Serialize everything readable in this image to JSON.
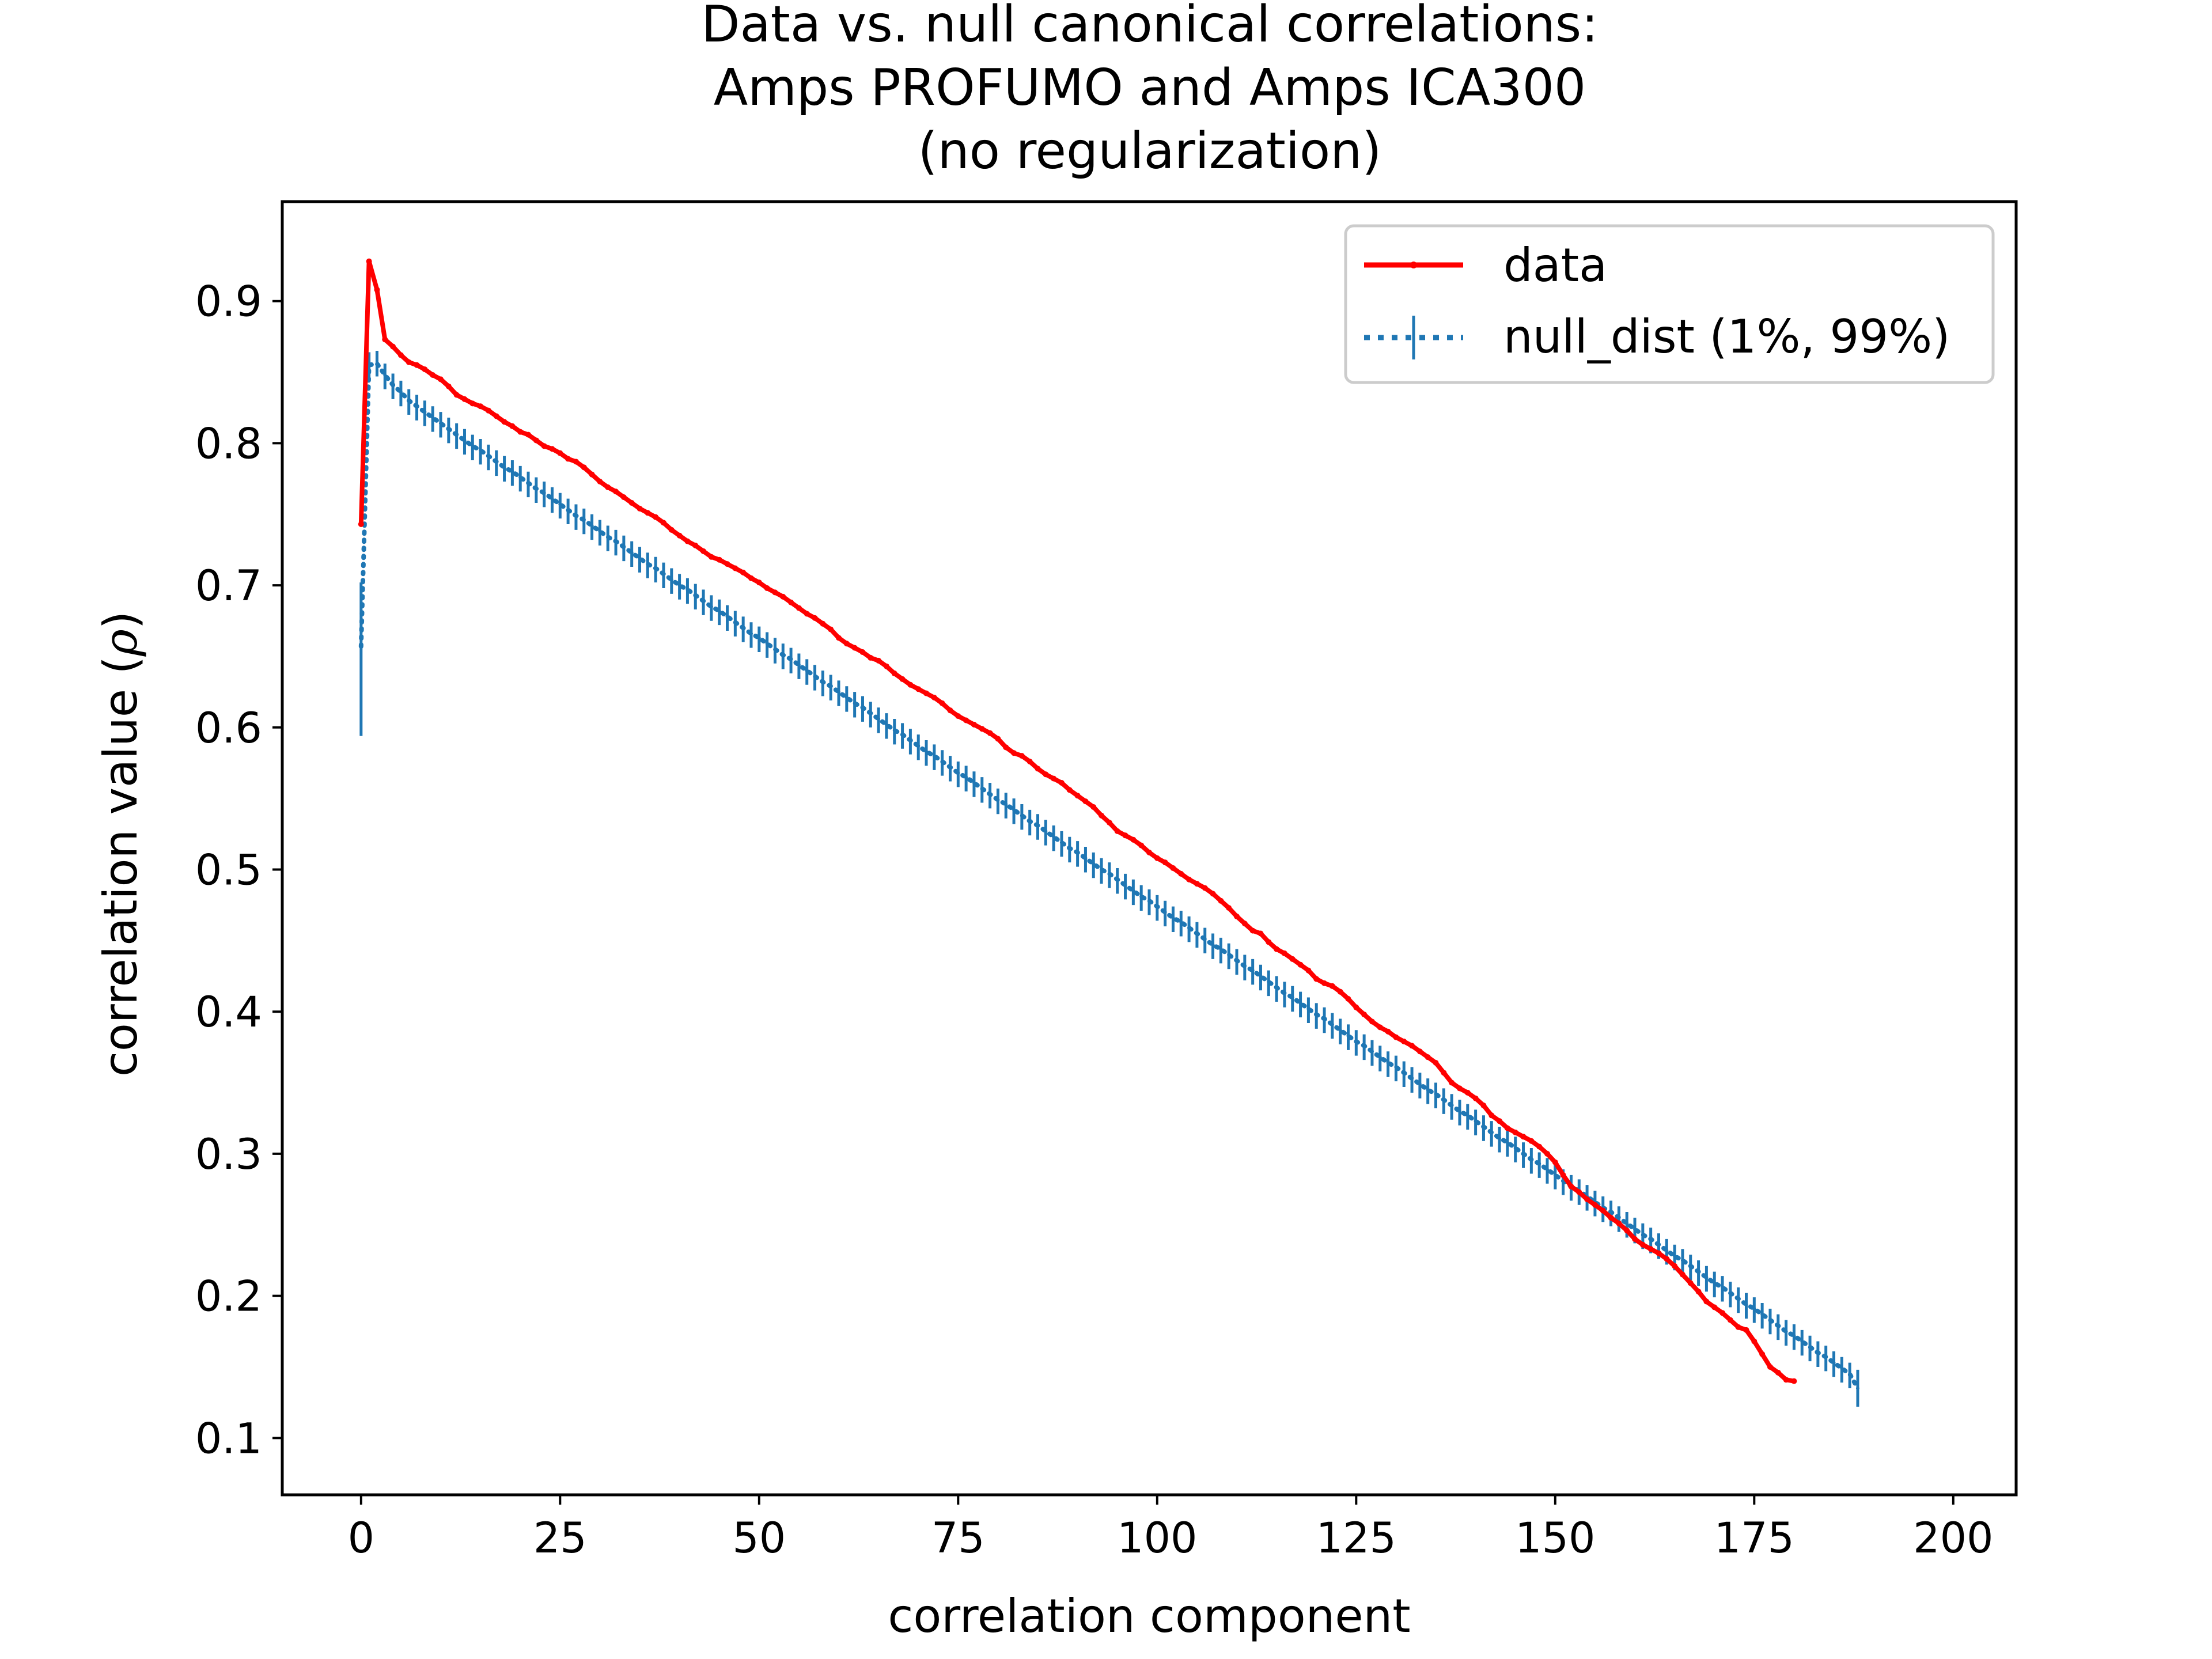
{
  "chart_data": {
    "type": "line",
    "title_lines": [
      "Data vs. null canonical correlations:",
      "Amps PROFUMO and Amps ICA300",
      "(no regularization)"
    ],
    "xlabel": "correlation component",
    "ylabel_prefix": "correlation value (",
    "ylabel_symbol": "ρ",
    "ylabel_suffix": ")",
    "xlim": [
      -9.9,
      207.9
    ],
    "ylim": [
      0.06,
      0.97
    ],
    "xticks": [
      0,
      25,
      50,
      75,
      100,
      125,
      150,
      175,
      200
    ],
    "xtick_labels": [
      "0",
      "25",
      "50",
      "75",
      "100",
      "125",
      "150",
      "175",
      "200"
    ],
    "yticks": [
      0.1,
      0.2,
      0.3,
      0.4,
      0.5,
      0.6,
      0.7,
      0.8,
      0.9
    ],
    "ytick_labels": [
      "0.1",
      "0.2",
      "0.3",
      "0.4",
      "0.5",
      "0.6",
      "0.7",
      "0.8",
      "0.9"
    ],
    "legend_position": "top-right",
    "grid": false,
    "series": [
      {
        "name": "data",
        "color": "#ff0000",
        "style": "solid line with point markers",
        "x_start": 0,
        "x_step": 1,
        "values": [
          0.743,
          0.928,
          0.908,
          0.873,
          0.868,
          0.862,
          0.857,
          0.855,
          0.852,
          0.848,
          0.845,
          0.84,
          0.834,
          0.831,
          0.828,
          0.826,
          0.823,
          0.819,
          0.815,
          0.812,
          0.808,
          0.806,
          0.802,
          0.798,
          0.796,
          0.793,
          0.789,
          0.787,
          0.783,
          0.778,
          0.773,
          0.769,
          0.766,
          0.762,
          0.758,
          0.754,
          0.751,
          0.748,
          0.744,
          0.739,
          0.735,
          0.731,
          0.728,
          0.724,
          0.72,
          0.718,
          0.715,
          0.712,
          0.709,
          0.705,
          0.702,
          0.698,
          0.695,
          0.692,
          0.688,
          0.684,
          0.68,
          0.677,
          0.673,
          0.669,
          0.663,
          0.659,
          0.656,
          0.653,
          0.649,
          0.647,
          0.643,
          0.638,
          0.634,
          0.63,
          0.627,
          0.624,
          0.621,
          0.617,
          0.612,
          0.608,
          0.605,
          0.602,
          0.599,
          0.596,
          0.592,
          0.586,
          0.582,
          0.58,
          0.576,
          0.571,
          0.567,
          0.564,
          0.561,
          0.556,
          0.552,
          0.548,
          0.544,
          0.538,
          0.533,
          0.527,
          0.524,
          0.521,
          0.517,
          0.512,
          0.508,
          0.505,
          0.501,
          0.497,
          0.493,
          0.49,
          0.487,
          0.483,
          0.478,
          0.473,
          0.467,
          0.462,
          0.457,
          0.455,
          0.449,
          0.444,
          0.441,
          0.437,
          0.433,
          0.429,
          0.423,
          0.42,
          0.418,
          0.414,
          0.409,
          0.403,
          0.398,
          0.393,
          0.389,
          0.386,
          0.382,
          0.379,
          0.376,
          0.372,
          0.368,
          0.364,
          0.357,
          0.35,
          0.346,
          0.343,
          0.339,
          0.334,
          0.327,
          0.323,
          0.318,
          0.315,
          0.312,
          0.309,
          0.305,
          0.3,
          0.294,
          0.285,
          0.277,
          0.273,
          0.268,
          0.264,
          0.26,
          0.255,
          0.251,
          0.246,
          0.24,
          0.236,
          0.233,
          0.23,
          0.226,
          0.221,
          0.215,
          0.209,
          0.203,
          0.196,
          0.192,
          0.188,
          0.183,
          0.178,
          0.176,
          0.168,
          0.159,
          0.15,
          0.146,
          0.141,
          0.14
        ]
      },
      {
        "name": "null_dist (1%, 99%)",
        "color": "#1f77b4",
        "style": "dotted line with error bars",
        "x_start": 0,
        "x_step": 1,
        "values": [
          0.657,
          0.855,
          0.856,
          0.848,
          0.841,
          0.836,
          0.83,
          0.826,
          0.822,
          0.818,
          0.814,
          0.81,
          0.806,
          0.802,
          0.798,
          0.795,
          0.791,
          0.787,
          0.783,
          0.78,
          0.776,
          0.772,
          0.768,
          0.765,
          0.761,
          0.757,
          0.753,
          0.749,
          0.746,
          0.742,
          0.738,
          0.734,
          0.731,
          0.727,
          0.723,
          0.719,
          0.715,
          0.712,
          0.708,
          0.704,
          0.7,
          0.697,
          0.693,
          0.689,
          0.685,
          0.682,
          0.678,
          0.674,
          0.67,
          0.666,
          0.663,
          0.659,
          0.655,
          0.651,
          0.648,
          0.644,
          0.64,
          0.636,
          0.632,
          0.629,
          0.625,
          0.621,
          0.617,
          0.614,
          0.61,
          0.606,
          0.602,
          0.598,
          0.595,
          0.591,
          0.587,
          0.583,
          0.58,
          0.576,
          0.572,
          0.568,
          0.565,
          0.561,
          0.557,
          0.553,
          0.549,
          0.546,
          0.542,
          0.538,
          0.534,
          0.531,
          0.527,
          0.523,
          0.519,
          0.515,
          0.512,
          0.508,
          0.504,
          0.5,
          0.497,
          0.493,
          0.489,
          0.485,
          0.481,
          0.478,
          0.474,
          0.47,
          0.466,
          0.463,
          0.459,
          0.455,
          0.451,
          0.447,
          0.444,
          0.44,
          0.436,
          0.432,
          0.429,
          0.425,
          0.421,
          0.417,
          0.413,
          0.41,
          0.406,
          0.402,
          0.398,
          0.395,
          0.391,
          0.387,
          0.383,
          0.379,
          0.376,
          0.372,
          0.368,
          0.364,
          0.361,
          0.357,
          0.353,
          0.349,
          0.345,
          0.342,
          0.338,
          0.334,
          0.33,
          0.327,
          0.323,
          0.319,
          0.315,
          0.311,
          0.308,
          0.304,
          0.3,
          0.296,
          0.293,
          0.289,
          0.285,
          0.281,
          0.277,
          0.274,
          0.27,
          0.266,
          0.262,
          0.259,
          0.255,
          0.251,
          0.247,
          0.243,
          0.24,
          0.236,
          0.232,
          0.228,
          0.225,
          0.221,
          0.217,
          0.213,
          0.209,
          0.206,
          0.202,
          0.198,
          0.194,
          0.191,
          0.187,
          0.183,
          0.179,
          0.175,
          0.172,
          0.168,
          0.164,
          0.16,
          0.157,
          0.153,
          0.149,
          0.145,
          0.135
        ],
        "err_low": [
          0.594,
          0.846,
          0.847,
          0.838,
          0.831,
          0.826,
          0.82,
          0.816,
          0.812,
          0.808,
          0.804,
          0.8,
          0.796,
          0.792,
          0.788,
          0.785,
          0.781,
          0.777,
          0.773,
          0.77,
          0.766,
          0.762,
          0.758,
          0.755,
          0.751,
          0.747,
          0.743,
          0.739,
          0.736,
          0.732,
          0.728,
          0.724,
          0.721,
          0.717,
          0.713,
          0.709,
          0.705,
          0.702,
          0.698,
          0.694,
          0.69,
          0.687,
          0.683,
          0.679,
          0.675,
          0.672,
          0.668,
          0.664,
          0.66,
          0.656,
          0.653,
          0.649,
          0.645,
          0.641,
          0.638,
          0.634,
          0.63,
          0.626,
          0.622,
          0.619,
          0.615,
          0.611,
          0.607,
          0.604,
          0.6,
          0.596,
          0.592,
          0.588,
          0.585,
          0.581,
          0.577,
          0.573,
          0.57,
          0.566,
          0.562,
          0.558,
          0.555,
          0.551,
          0.547,
          0.543,
          0.539,
          0.536,
          0.532,
          0.528,
          0.524,
          0.521,
          0.517,
          0.513,
          0.509,
          0.505,
          0.502,
          0.498,
          0.494,
          0.49,
          0.487,
          0.483,
          0.479,
          0.475,
          0.471,
          0.468,
          0.464,
          0.46,
          0.456,
          0.453,
          0.449,
          0.445,
          0.441,
          0.437,
          0.434,
          0.43,
          0.426,
          0.422,
          0.419,
          0.415,
          0.411,
          0.407,
          0.403,
          0.4,
          0.396,
          0.392,
          0.388,
          0.385,
          0.381,
          0.377,
          0.373,
          0.369,
          0.366,
          0.362,
          0.358,
          0.354,
          0.351,
          0.347,
          0.343,
          0.339,
          0.335,
          0.332,
          0.328,
          0.324,
          0.32,
          0.317,
          0.313,
          0.309,
          0.305,
          0.301,
          0.298,
          0.294,
          0.29,
          0.286,
          0.283,
          0.279,
          0.275,
          0.271,
          0.267,
          0.264,
          0.26,
          0.256,
          0.252,
          0.249,
          0.245,
          0.241,
          0.237,
          0.233,
          0.23,
          0.226,
          0.222,
          0.218,
          0.215,
          0.211,
          0.207,
          0.203,
          0.199,
          0.196,
          0.192,
          0.188,
          0.184,
          0.181,
          0.177,
          0.173,
          0.169,
          0.165,
          0.162,
          0.158,
          0.154,
          0.15,
          0.147,
          0.143,
          0.139,
          0.135,
          0.122
        ],
        "err_high": [
          0.702,
          0.864,
          0.865,
          0.856,
          0.849,
          0.844,
          0.838,
          0.834,
          0.83,
          0.826,
          0.822,
          0.818,
          0.814,
          0.81,
          0.806,
          0.803,
          0.799,
          0.795,
          0.791,
          0.788,
          0.784,
          0.78,
          0.776,
          0.773,
          0.769,
          0.765,
          0.761,
          0.757,
          0.754,
          0.75,
          0.746,
          0.742,
          0.739,
          0.735,
          0.731,
          0.727,
          0.723,
          0.72,
          0.716,
          0.712,
          0.708,
          0.705,
          0.701,
          0.697,
          0.693,
          0.69,
          0.686,
          0.682,
          0.678,
          0.674,
          0.671,
          0.667,
          0.663,
          0.659,
          0.656,
          0.652,
          0.648,
          0.644,
          0.64,
          0.637,
          0.633,
          0.629,
          0.625,
          0.622,
          0.618,
          0.614,
          0.61,
          0.606,
          0.603,
          0.599,
          0.595,
          0.591,
          0.588,
          0.584,
          0.58,
          0.576,
          0.573,
          0.569,
          0.565,
          0.561,
          0.557,
          0.554,
          0.55,
          0.546,
          0.542,
          0.539,
          0.535,
          0.531,
          0.527,
          0.523,
          0.52,
          0.516,
          0.512,
          0.508,
          0.505,
          0.501,
          0.497,
          0.493,
          0.489,
          0.486,
          0.482,
          0.478,
          0.474,
          0.471,
          0.467,
          0.463,
          0.459,
          0.455,
          0.452,
          0.448,
          0.444,
          0.44,
          0.437,
          0.433,
          0.429,
          0.425,
          0.421,
          0.418,
          0.414,
          0.41,
          0.406,
          0.403,
          0.399,
          0.395,
          0.391,
          0.387,
          0.384,
          0.38,
          0.376,
          0.372,
          0.369,
          0.365,
          0.361,
          0.357,
          0.353,
          0.35,
          0.346,
          0.342,
          0.338,
          0.335,
          0.331,
          0.327,
          0.323,
          0.319,
          0.316,
          0.312,
          0.308,
          0.304,
          0.301,
          0.297,
          0.293,
          0.289,
          0.285,
          0.282,
          0.278,
          0.274,
          0.27,
          0.267,
          0.263,
          0.259,
          0.255,
          0.251,
          0.248,
          0.244,
          0.24,
          0.236,
          0.233,
          0.229,
          0.225,
          0.221,
          0.217,
          0.214,
          0.21,
          0.206,
          0.202,
          0.199,
          0.195,
          0.191,
          0.187,
          0.183,
          0.18,
          0.176,
          0.172,
          0.168,
          0.165,
          0.161,
          0.157,
          0.153,
          0.148
        ]
      }
    ]
  }
}
